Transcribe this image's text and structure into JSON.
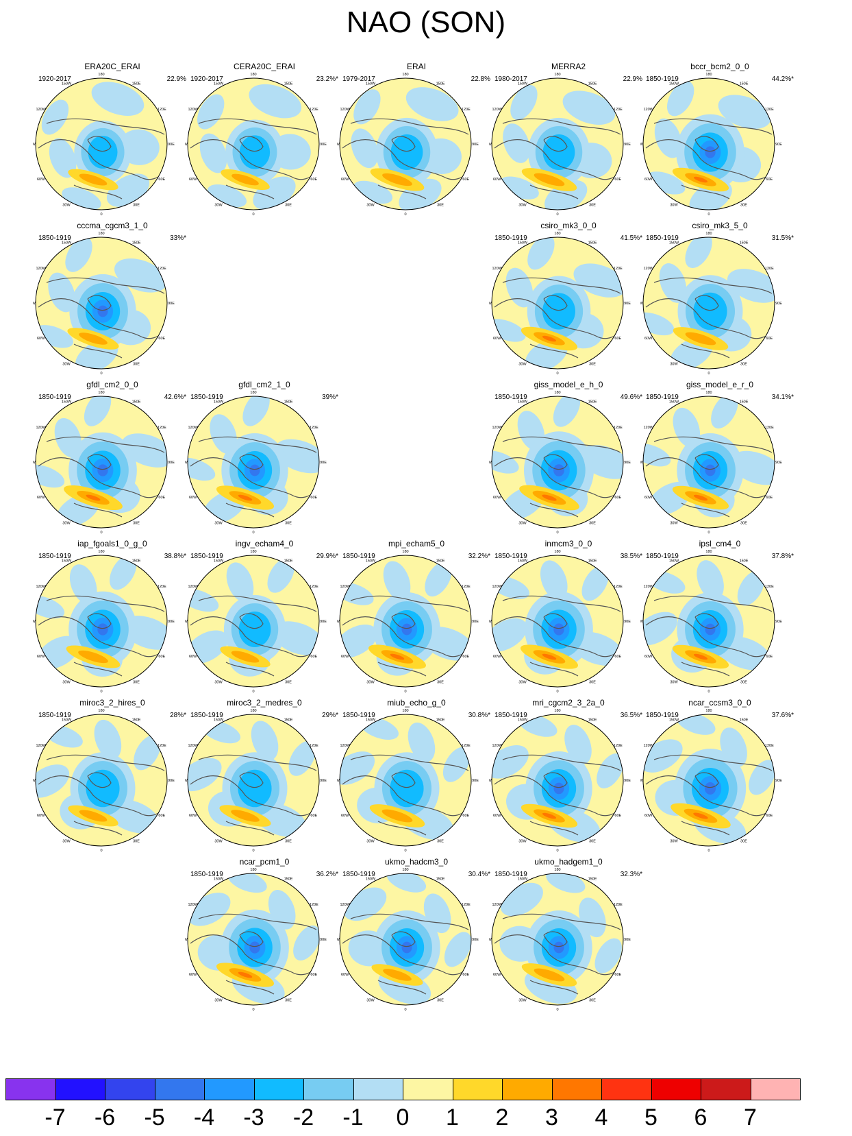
{
  "title": "NAO (SON)",
  "lon_labels": [
    "180",
    "150E",
    "120E",
    "90E",
    "60E",
    "30E",
    "0",
    "30W",
    "60W",
    "90W",
    "120W",
    "150W"
  ],
  "panels": [
    {
      "name": "ERA20C_ERAI",
      "period": "1920-2017",
      "pct": "22.9%",
      "positive": 0.55,
      "negative": 0.55
    },
    {
      "name": "CERA20C_ERAI",
      "period": "1920-2017",
      "pct": "23.2%*",
      "positive": 0.5,
      "negative": 0.6
    },
    {
      "name": "ERAI",
      "period": "1979-2017",
      "pct": "22.8%",
      "positive": 0.7,
      "negative": 0.7
    },
    {
      "name": "MERRA2",
      "period": "1980-2017",
      "pct": "22.9%",
      "positive": 0.75,
      "negative": 0.7
    },
    {
      "name": "bccr_bcm2_0_0",
      "period": "1850-1919",
      "pct": "44.2%*",
      "positive": 0.8,
      "negative": 0.9
    },
    {
      "name": "cccma_cgcm3_1_0",
      "period": "1850-1919",
      "pct": "33%*",
      "positive": 0.6,
      "negative": 0.85
    },
    {
      "name": "csiro_mk3_0_0",
      "period": "1850-1919",
      "pct": "41.5%*",
      "positive": 0.8,
      "negative": 0.75
    },
    {
      "name": "csiro_mk3_5_0",
      "period": "1850-1919",
      "pct": "31.5%*",
      "positive": 0.75,
      "negative": 0.8
    },
    {
      "name": "gfdl_cm2_0_0",
      "period": "1850-1919",
      "pct": "42.6%*",
      "positive": 0.9,
      "negative": 0.9
    },
    {
      "name": "gfdl_cm2_1_0",
      "period": "1850-1919",
      "pct": "39%*",
      "positive": 0.85,
      "negative": 0.85
    },
    {
      "name": "giss_model_e_h_0",
      "period": "1850-1919",
      "pct": "49.6%*",
      "positive": 0.95,
      "negative": 0.95
    },
    {
      "name": "giss_model_e_r_0",
      "period": "1850-1919",
      "pct": "34.1%*",
      "positive": 0.8,
      "negative": 0.85
    },
    {
      "name": "iap_fgoals1_0_g_0",
      "period": "1850-1919",
      "pct": "38.8%*",
      "positive": 0.7,
      "negative": 0.9
    },
    {
      "name": "ingv_echam4_0",
      "period": "1850-1919",
      "pct": "29.9%*",
      "positive": 0.55,
      "negative": 0.7
    },
    {
      "name": "mpi_echam5_0",
      "period": "1850-1919",
      "pct": "32.2%*",
      "positive": 0.85,
      "negative": 0.85
    },
    {
      "name": "inmcm3_0_0",
      "period": "1850-1919",
      "pct": "38.5%*",
      "positive": 0.85,
      "negative": 0.9
    },
    {
      "name": "ipsl_cm4_0",
      "period": "1850-1919",
      "pct": "37.8%*",
      "positive": 0.8,
      "negative": 0.85
    },
    {
      "name": "miroc3_2_hires_0",
      "period": "1850-1919",
      "pct": "28%*",
      "positive": 0.55,
      "negative": 0.8
    },
    {
      "name": "miroc3_2_medres_0",
      "period": "1850-1919",
      "pct": "29%*",
      "positive": 0.6,
      "negative": 0.8
    },
    {
      "name": "miub_echo_g_0",
      "period": "1850-1919",
      "pct": "30.8%*",
      "positive": 0.75,
      "negative": 0.8
    },
    {
      "name": "mri_cgcm2_3_2a_0",
      "period": "1850-1919",
      "pct": "36.5%*",
      "positive": 0.8,
      "negative": 0.85
    },
    {
      "name": "ncar_ccsm3_0_0",
      "period": "1850-1919",
      "pct": "37.6%*",
      "positive": 0.95,
      "negative": 1.0
    },
    {
      "name": "ncar_pcm1_0",
      "period": "1850-1919",
      "pct": "36.2%*",
      "positive": 0.85,
      "negative": 0.9
    },
    {
      "name": "ukmo_hadcm3_0",
      "period": "1850-1919",
      "pct": "30.4%*",
      "positive": 0.6,
      "negative": 0.85
    },
    {
      "name": "ukmo_hadgem1_0",
      "period": "1850-1919",
      "pct": "32.3%*",
      "positive": 0.75,
      "negative": 0.85
    }
  ],
  "colorbar": {
    "labels": [
      "-7",
      "-6",
      "-5",
      "-4",
      "-3",
      "-2",
      "-1",
      "0",
      "1",
      "2",
      "3",
      "4",
      "5",
      "6",
      "7"
    ],
    "colors": [
      "#8833ee",
      "#2211ff",
      "#3344ee",
      "#3377ee",
      "#2299ff",
      "#11bbff",
      "#77ccf2",
      "#b3def4",
      "#fdf6a3",
      "#ffd82a",
      "#ffaa00",
      "#ff7700",
      "#ff3311",
      "#ee0000",
      "#cc1a1a",
      "#ffb3b3"
    ]
  }
}
